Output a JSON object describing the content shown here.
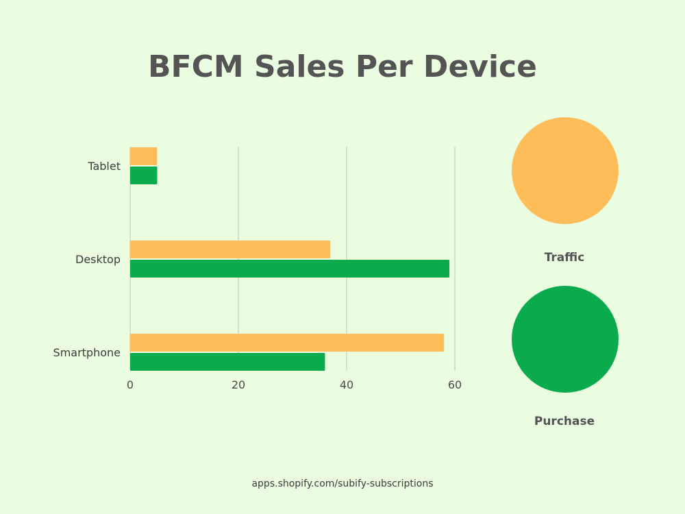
{
  "chart_data": {
    "type": "bar",
    "orientation": "horizontal",
    "title": "BFCM Sales Per Device",
    "categories": [
      "Tablet",
      "Desktop",
      "Smartphone"
    ],
    "series": [
      {
        "name": "Traffic",
        "values": [
          5,
          37,
          58
        ],
        "color": "#ffbd59"
      },
      {
        "name": "Purchase",
        "values": [
          5,
          59,
          36
        ],
        "color": "#0aab4c"
      }
    ],
    "xlim": [
      0,
      60
    ],
    "xticks": [
      "0",
      "20",
      "40",
      "60"
    ],
    "grid": true,
    "legend_position": "right"
  },
  "footer": {
    "text": "apps.shopify.com/subify-subscriptions"
  }
}
